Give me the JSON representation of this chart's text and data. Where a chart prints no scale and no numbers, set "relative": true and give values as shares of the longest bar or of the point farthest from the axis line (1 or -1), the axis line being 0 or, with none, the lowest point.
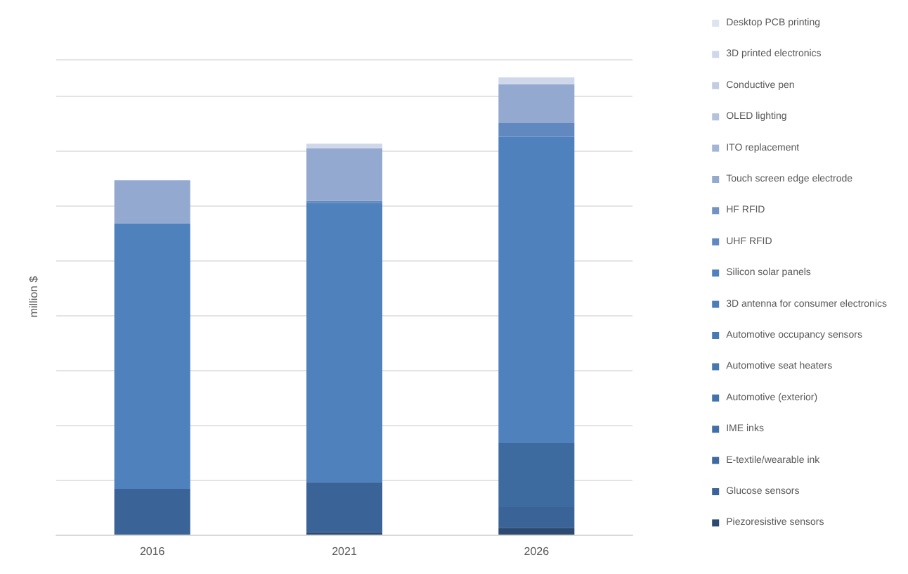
{
  "chart_data": {
    "type": "bar",
    "stacked": true,
    "relative": true,
    "ylabel": "million $",
    "categories": [
      "2016",
      "2021",
      "2026"
    ],
    "grid": "y",
    "legend": "right",
    "series": [
      {
        "name": "Piezoresistive sensors",
        "color": "#2c4a72",
        "values": [
          0,
          0.005,
          0.015
        ]
      },
      {
        "name": "Glucose sensors",
        "color": "#3a6398",
        "values": [
          0.1,
          0.11,
          0.045
        ]
      },
      {
        "name": "E-textile/wearable ink",
        "color": "#3d6a9f",
        "values": [
          0,
          0,
          0.14
        ]
      },
      {
        "name": "IME inks",
        "color": "#416fa6",
        "values": [
          0,
          0,
          0
        ]
      },
      {
        "name": "Automotive (exterior)",
        "color": "#4373ab",
        "values": [
          0,
          0,
          0
        ]
      },
      {
        "name": "Automotive seat heaters",
        "color": "#4577b0",
        "values": [
          0,
          0,
          0
        ]
      },
      {
        "name": "Automotive occupancy sensors",
        "color": "#477bb4",
        "values": [
          0,
          0,
          0
        ]
      },
      {
        "name": "3D antenna for consumer electronics",
        "color": "#4a7eb8",
        "values": [
          0,
          0,
          0
        ]
      },
      {
        "name": "Silicon solar panels",
        "color": "#4f81bd",
        "values": [
          0.58,
          0.61,
          0.67
        ]
      },
      {
        "name": "UHF RFID",
        "color": "#6189c0",
        "values": [
          0,
          0.005,
          0.03
        ]
      },
      {
        "name": "HF RFID",
        "color": "#7093c4",
        "values": [
          0,
          0,
          0
        ]
      },
      {
        "name": "Touch screen edge electrode",
        "color": "#93a9d0",
        "values": [
          0.095,
          0.115,
          0.085
        ]
      },
      {
        "name": "ITO replacement",
        "color": "#a3b5d6",
        "values": [
          0,
          0,
          0
        ]
      },
      {
        "name": "OLED lighting",
        "color": "#b3c2dd",
        "values": [
          0,
          0,
          0
        ]
      },
      {
        "name": "Conductive pen",
        "color": "#c2cde3",
        "values": [
          0,
          0,
          0
        ]
      },
      {
        "name": "3D printed electronics",
        "color": "#cfd8ea",
        "values": [
          0,
          0.01,
          0.015
        ]
      },
      {
        "name": "Desktop PCB printing",
        "color": "#dde4f0",
        "values": [
          0,
          0,
          0
        ]
      }
    ]
  }
}
